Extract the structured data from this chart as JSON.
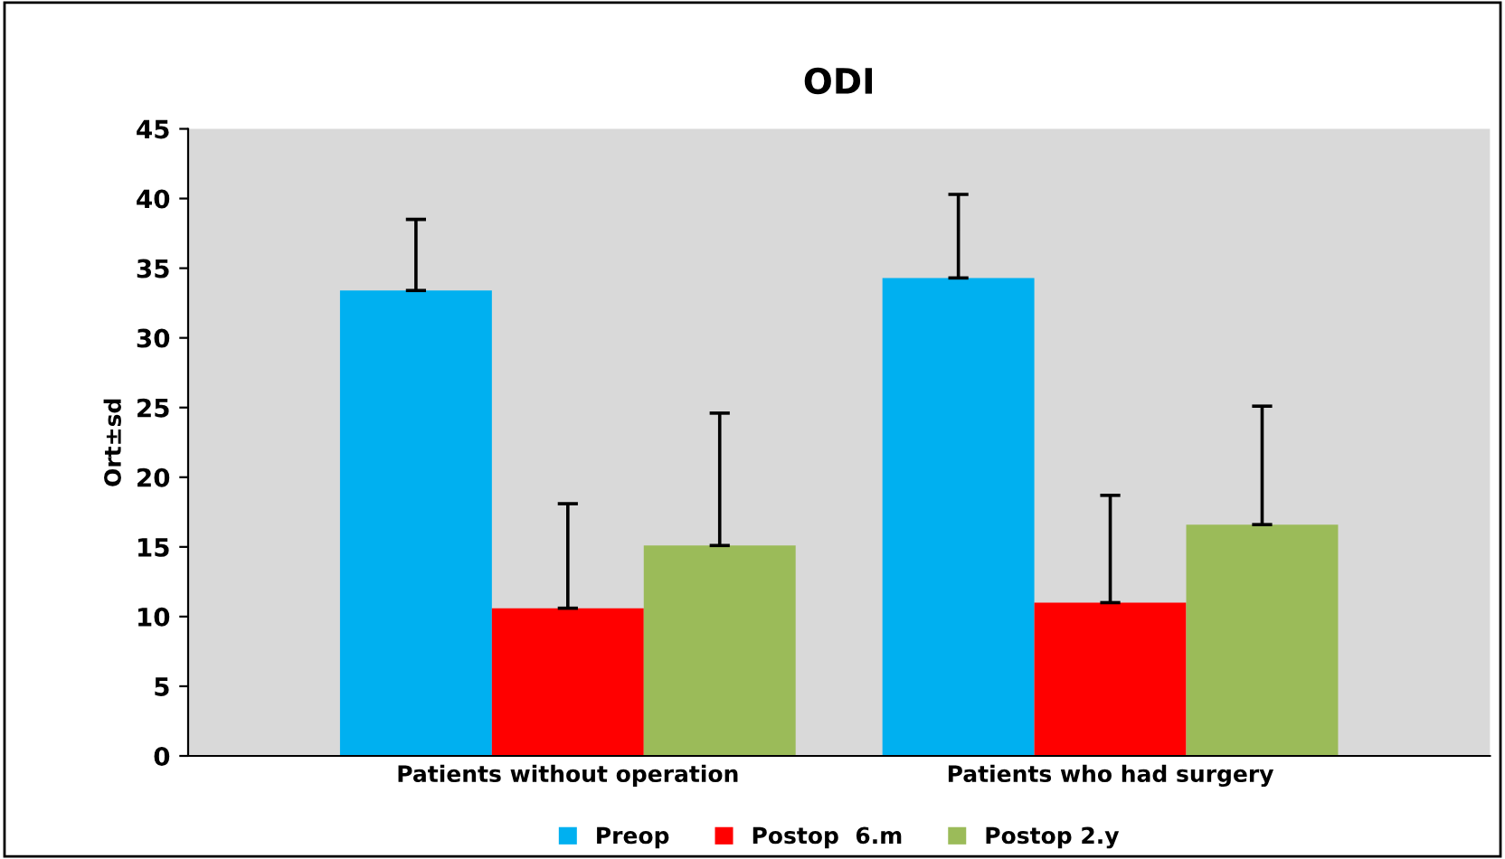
{
  "chart_data": {
    "type": "bar",
    "title": "ODI",
    "ylabel": "Ort±sd",
    "categories": [
      "Patients without operation",
      "Patients who had surgery"
    ],
    "series": [
      {
        "name": "Preop",
        "color": "#00b0f0",
        "values": [
          33.4,
          34.3
        ],
        "errors": [
          5.1,
          6.0
        ]
      },
      {
        "name": "Postop  6.m",
        "color": "#ff0000",
        "values": [
          10.6,
          11.0
        ],
        "errors": [
          7.5,
          7.7
        ]
      },
      {
        "name": "Postop 2.y",
        "color": "#9bbb59",
        "values": [
          15.1,
          16.6
        ],
        "errors": [
          9.5,
          8.5
        ]
      }
    ],
    "ylim": [
      0,
      45
    ],
    "yticks": [
      0,
      5,
      10,
      15,
      20,
      25,
      30,
      35,
      40,
      45
    ],
    "grid": false,
    "legend": "bottom"
  }
}
